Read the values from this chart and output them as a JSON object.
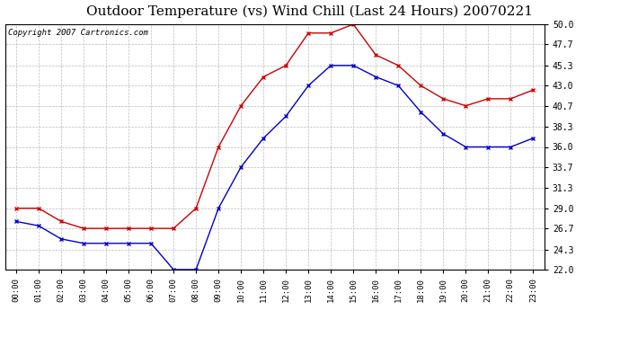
{
  "title": "Outdoor Temperature (vs) Wind Chill (Last 24 Hours) 20070221",
  "copyright": "Copyright 2007 Cartronics.com",
  "hours": [
    "00:00",
    "01:00",
    "02:00",
    "03:00",
    "04:00",
    "05:00",
    "06:00",
    "07:00",
    "08:00",
    "09:00",
    "10:00",
    "11:00",
    "12:00",
    "13:00",
    "14:00",
    "15:00",
    "16:00",
    "17:00",
    "18:00",
    "19:00",
    "20:00",
    "21:00",
    "22:00",
    "23:00"
  ],
  "temp": [
    29.0,
    29.0,
    27.5,
    26.7,
    26.7,
    26.7,
    26.7,
    26.7,
    29.0,
    36.0,
    40.7,
    44.0,
    45.3,
    49.0,
    49.0,
    50.0,
    46.5,
    45.3,
    43.0,
    41.5,
    40.7,
    41.5,
    41.5,
    42.5
  ],
  "wind_chill": [
    27.5,
    27.0,
    25.5,
    25.0,
    25.0,
    25.0,
    25.0,
    22.0,
    22.0,
    29.0,
    33.7,
    37.0,
    39.5,
    43.0,
    45.3,
    45.3,
    44.0,
    43.0,
    40.0,
    37.5,
    36.0,
    36.0,
    36.0,
    37.0
  ],
  "temp_color": "#cc0000",
  "wind_chill_color": "#0000cc",
  "bg_color": "#ffffff",
  "plot_bg_color": "#ffffff",
  "grid_color": "#bbbbbb",
  "title_fontsize": 11,
  "copyright_fontsize": 6.5,
  "ylim": [
    22.0,
    50.0
  ],
  "yticks": [
    22.0,
    24.3,
    26.7,
    29.0,
    31.3,
    33.7,
    36.0,
    38.3,
    40.7,
    43.0,
    45.3,
    47.7,
    50.0
  ]
}
